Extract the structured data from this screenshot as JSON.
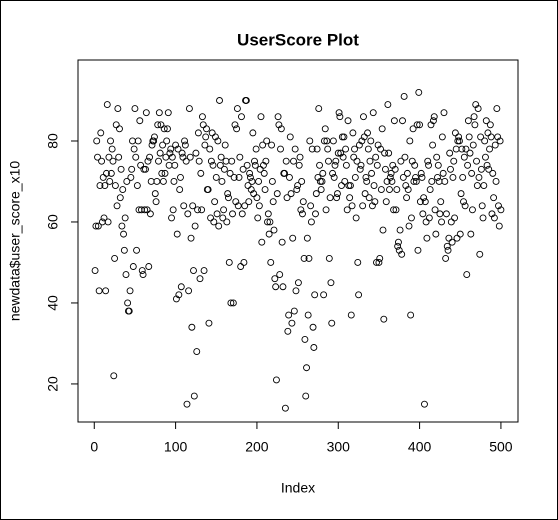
{
  "chart_data": {
    "type": "scatter",
    "title": "UserScore Plot",
    "x_label": "Index",
    "y_label": "newdata$user_score_x10",
    "color": "#000000",
    "xlim": [
      -20,
      521
    ],
    "ylim": [
      10.6,
      100
    ],
    "xticks": [
      0,
      100,
      200,
      300,
      400,
      500
    ],
    "yticks": [
      20,
      40,
      60,
      80
    ],
    "values": [
      48,
      59,
      80,
      76,
      59,
      43,
      69,
      82,
      75,
      60,
      71,
      61,
      69,
      43,
      72,
      89,
      60,
      76,
      70,
      80,
      72,
      78,
      75,
      22,
      51,
      69,
      84,
      64,
      88,
      76,
      83,
      66,
      73,
      59,
      68,
      57,
      53,
      61,
      47,
      70,
      40,
      38,
      38,
      43,
      71,
      73,
      80,
      49,
      78,
      88,
      76,
      53,
      69,
      80,
      63,
      85,
      74,
      63,
      48,
      47,
      73,
      63,
      73,
      87,
      63,
      75,
      49,
      76,
      62,
      70,
      79,
      80,
      80,
      81,
      67,
      65,
      70,
      84,
      75,
      87,
      77,
      84,
      72,
      79,
      70,
      83,
      72,
      76,
      80,
      83,
      87,
      74,
      77,
      78,
      61,
      76,
      63,
      70,
      74,
      79,
      41,
      57,
      78,
      42,
      68,
      71,
      44,
      77,
      76,
      64,
      80,
      79,
      75,
      15,
      62,
      43,
      88,
      76,
      56,
      34,
      64,
      48,
      17,
      59,
      77,
      28,
      63,
      82,
      75,
      46,
      72,
      63,
      86,
      84,
      48,
      79,
      81,
      83,
      68,
      68,
      35,
      78,
      61,
      75,
      82,
      74,
      60,
      65,
      81,
      71,
      62,
      80,
      59,
      90,
      74,
      76,
      70,
      61,
      63,
      73,
      79,
      75,
      60,
      67,
      66,
      50,
      72,
      40,
      75,
      62,
      40,
      71,
      84,
      65,
      83,
      88,
      64,
      71,
      76,
      49,
      86,
      62,
      73,
      50,
      64,
      90,
      90,
      74,
      69,
      65,
      72,
      71,
      68,
      70,
      82,
      67,
      75,
      74,
      78,
      66,
      61,
      70,
      64,
      73,
      86,
      55,
      79,
      74,
      72,
      68,
      75,
      80,
      60,
      62,
      57,
      60,
      50,
      79,
      70,
      65,
      58,
      46,
      44,
      21,
      67,
      86,
      84,
      47,
      78,
      83,
      55,
      44,
      72,
      72,
      14,
      75,
      66,
      33,
      37,
      71,
      81,
      67,
      35,
      56,
      75,
      38,
      78,
      43,
      68,
      69,
      45,
      74,
      76,
      63,
      70,
      62,
      65,
      51,
      31,
      17,
      24,
      56,
      37,
      51,
      80,
      64,
      60,
      78,
      34,
      29,
      42,
      62,
      67,
      78,
      71,
      88,
      74,
      70,
      68,
      70,
      72,
      42,
      80,
      83,
      63,
      80,
      78,
      75,
      51,
      66,
      45,
      35,
      72,
      80,
      71,
      74,
      75,
      66,
      67,
      77,
      87,
      86,
      77,
      69,
      81,
      76,
      81,
      70,
      78,
      74,
      63,
      85,
      69,
      66,
      69,
      37,
      64,
      82,
      76,
      78,
      71,
      61,
      75,
      50,
      42,
      79,
      73,
      74,
      80,
      64,
      86,
      81,
      67,
      71,
      70,
      82,
      78,
      66,
      75,
      80,
      72,
      64,
      87,
      69,
      65,
      76,
      50,
      74,
      79,
      50,
      51,
      78,
      68,
      83,
      58,
      36,
      77,
      73,
      65,
      70,
      89,
      77,
      68,
      71,
      72,
      70,
      74,
      63,
      85,
      73,
      63,
      68,
      54,
      55,
      53,
      58,
      75,
      52,
      85,
      71,
      91,
      76,
      69,
      66,
      72,
      68,
      59,
      80,
      37,
      61,
      75,
      83,
      70,
      74,
      71,
      70,
      84,
      53,
      92,
      84,
      65,
      72,
      71,
      62,
      66,
      15,
      65,
      60,
      56,
      75,
      74,
      61,
      68,
      84,
      70,
      79,
      85,
      86,
      63,
      57,
      76,
      71,
      74,
      70,
      62,
      65,
      60,
      81,
      72,
      87,
      70,
      51,
      62,
      54,
      53,
      56,
      77,
      73,
      60,
      55,
      71,
      75,
      61,
      82,
      78,
      56,
      80,
      81,
      80,
      57,
      67,
      78,
      71,
      65,
      76,
      64,
      78,
      47,
      74,
      85,
      81,
      77,
      57,
      72,
      63,
      79,
      86,
      84,
      89,
      75,
      69,
      88,
      71,
      52,
      81,
      73,
      64,
      61,
      69,
      80,
      76,
      85,
      74,
      82,
      73,
      78,
      84,
      81,
      62,
      72,
      66,
      61,
      79,
      70,
      88,
      81,
      64,
      59,
      80,
      63
    ]
  }
}
